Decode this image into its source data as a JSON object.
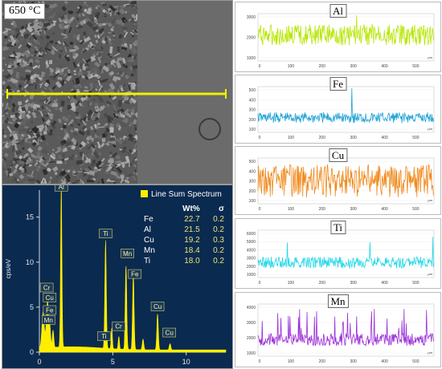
{
  "sem": {
    "temperature_label": "650 °C"
  },
  "eds": {
    "legend_title": "Line Sum Spectrum",
    "col_wt": "Wt%",
    "col_sigma": "σ",
    "rows": [
      {
        "el": "Fe",
        "wt": "22.7",
        "sigma": "0.2"
      },
      {
        "el": "Al",
        "wt": "21.5",
        "sigma": "0.2"
      },
      {
        "el": "Cu",
        "wt": "19.2",
        "sigma": "0.3"
      },
      {
        "el": "Mn",
        "wt": "18.4",
        "sigma": "0.2"
      },
      {
        "el": "Ti",
        "wt": "18.0",
        "sigma": "0.2"
      }
    ],
    "ylabel": "cps/eV",
    "y_ticks": [
      "15",
      "10",
      "5",
      "0"
    ],
    "x_ticks": [
      "0",
      "5",
      "10"
    ],
    "peaks": [
      "Al",
      "Ti",
      "Mn",
      "Fe",
      "Cr",
      "Cu",
      "Fe",
      "Mn",
      "Cr",
      "Ti",
      "Cu",
      "Cu"
    ],
    "color": "#ffee00"
  },
  "line_scans": [
    {
      "element": "Al",
      "color": "#b8e600",
      "y_ticks": [
        "3000",
        "2000",
        "1000"
      ]
    },
    {
      "element": "Fe",
      "color": "#1fa3d8",
      "y_ticks": [
        "500",
        "400",
        "300",
        "200",
        "100"
      ]
    },
    {
      "element": "Cu",
      "color": "#f08a1c",
      "y_ticks": [
        "500",
        "400",
        "300",
        "200",
        "100"
      ]
    },
    {
      "element": "Ti",
      "color": "#22d8e8",
      "y_ticks": [
        "6000",
        "5000",
        "4000",
        "3000",
        "2000",
        "1000"
      ]
    },
    {
      "element": "Mn",
      "color": "#9b30d8",
      "y_ticks": [
        "4000",
        "3000",
        "2000",
        "1000"
      ]
    }
  ],
  "scan_x_ticks": [
    "0",
    "100",
    "200",
    "300",
    "400",
    "500"
  ],
  "scan_unit": "μm"
}
